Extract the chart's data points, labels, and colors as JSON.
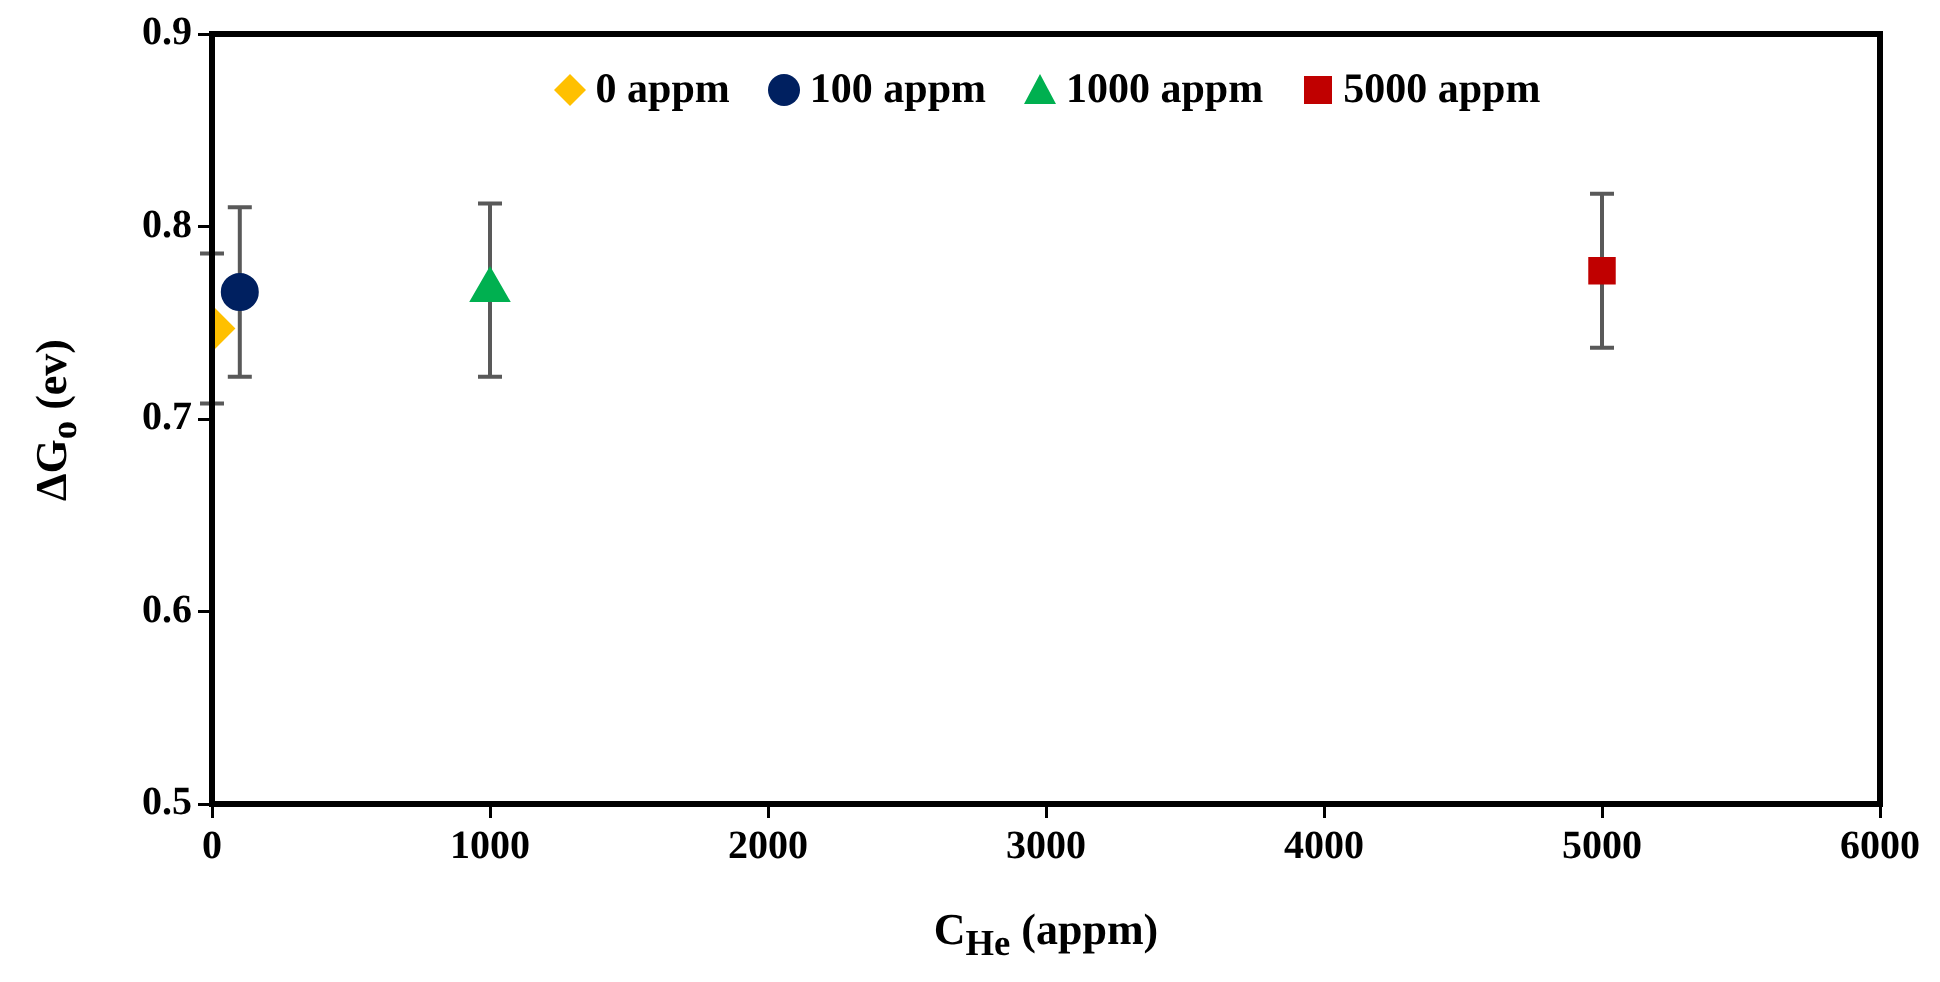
{
  "chart_data": {
    "type": "scatter",
    "xlabel": "C$_{He}$ (appm)",
    "ylabel": "ΔG$_{o}$ (ev)",
    "xlim": [
      0,
      6000
    ],
    "xticks": [
      0,
      1000,
      2000,
      3000,
      4000,
      5000,
      6000
    ],
    "ylim": [
      0.5,
      0.9
    ],
    "yticks": [
      0.5,
      0.6,
      0.7,
      0.8,
      0.9
    ],
    "grid": false,
    "legend": "top",
    "series": [
      {
        "name": "0 appm",
        "color": "#ffc000",
        "marker": "diamond",
        "x": [
          0
        ],
        "values": [
          0.747
        ],
        "errors": [
          0.039
        ]
      },
      {
        "name": "100 appm",
        "color": "#002060",
        "marker": "circle",
        "x": [
          100
        ],
        "values": [
          0.766
        ],
        "errors": [
          0.044
        ]
      },
      {
        "name": "1000 appm",
        "color": "#00b050",
        "marker": "triangle",
        "x": [
          1000
        ],
        "values": [
          0.767
        ],
        "errors": [
          0.045
        ]
      },
      {
        "name": "5000 appm",
        "color": "#c00000",
        "marker": "square",
        "x": [
          5000
        ],
        "values": [
          0.777
        ],
        "errors": [
          0.04
        ]
      }
    ]
  }
}
